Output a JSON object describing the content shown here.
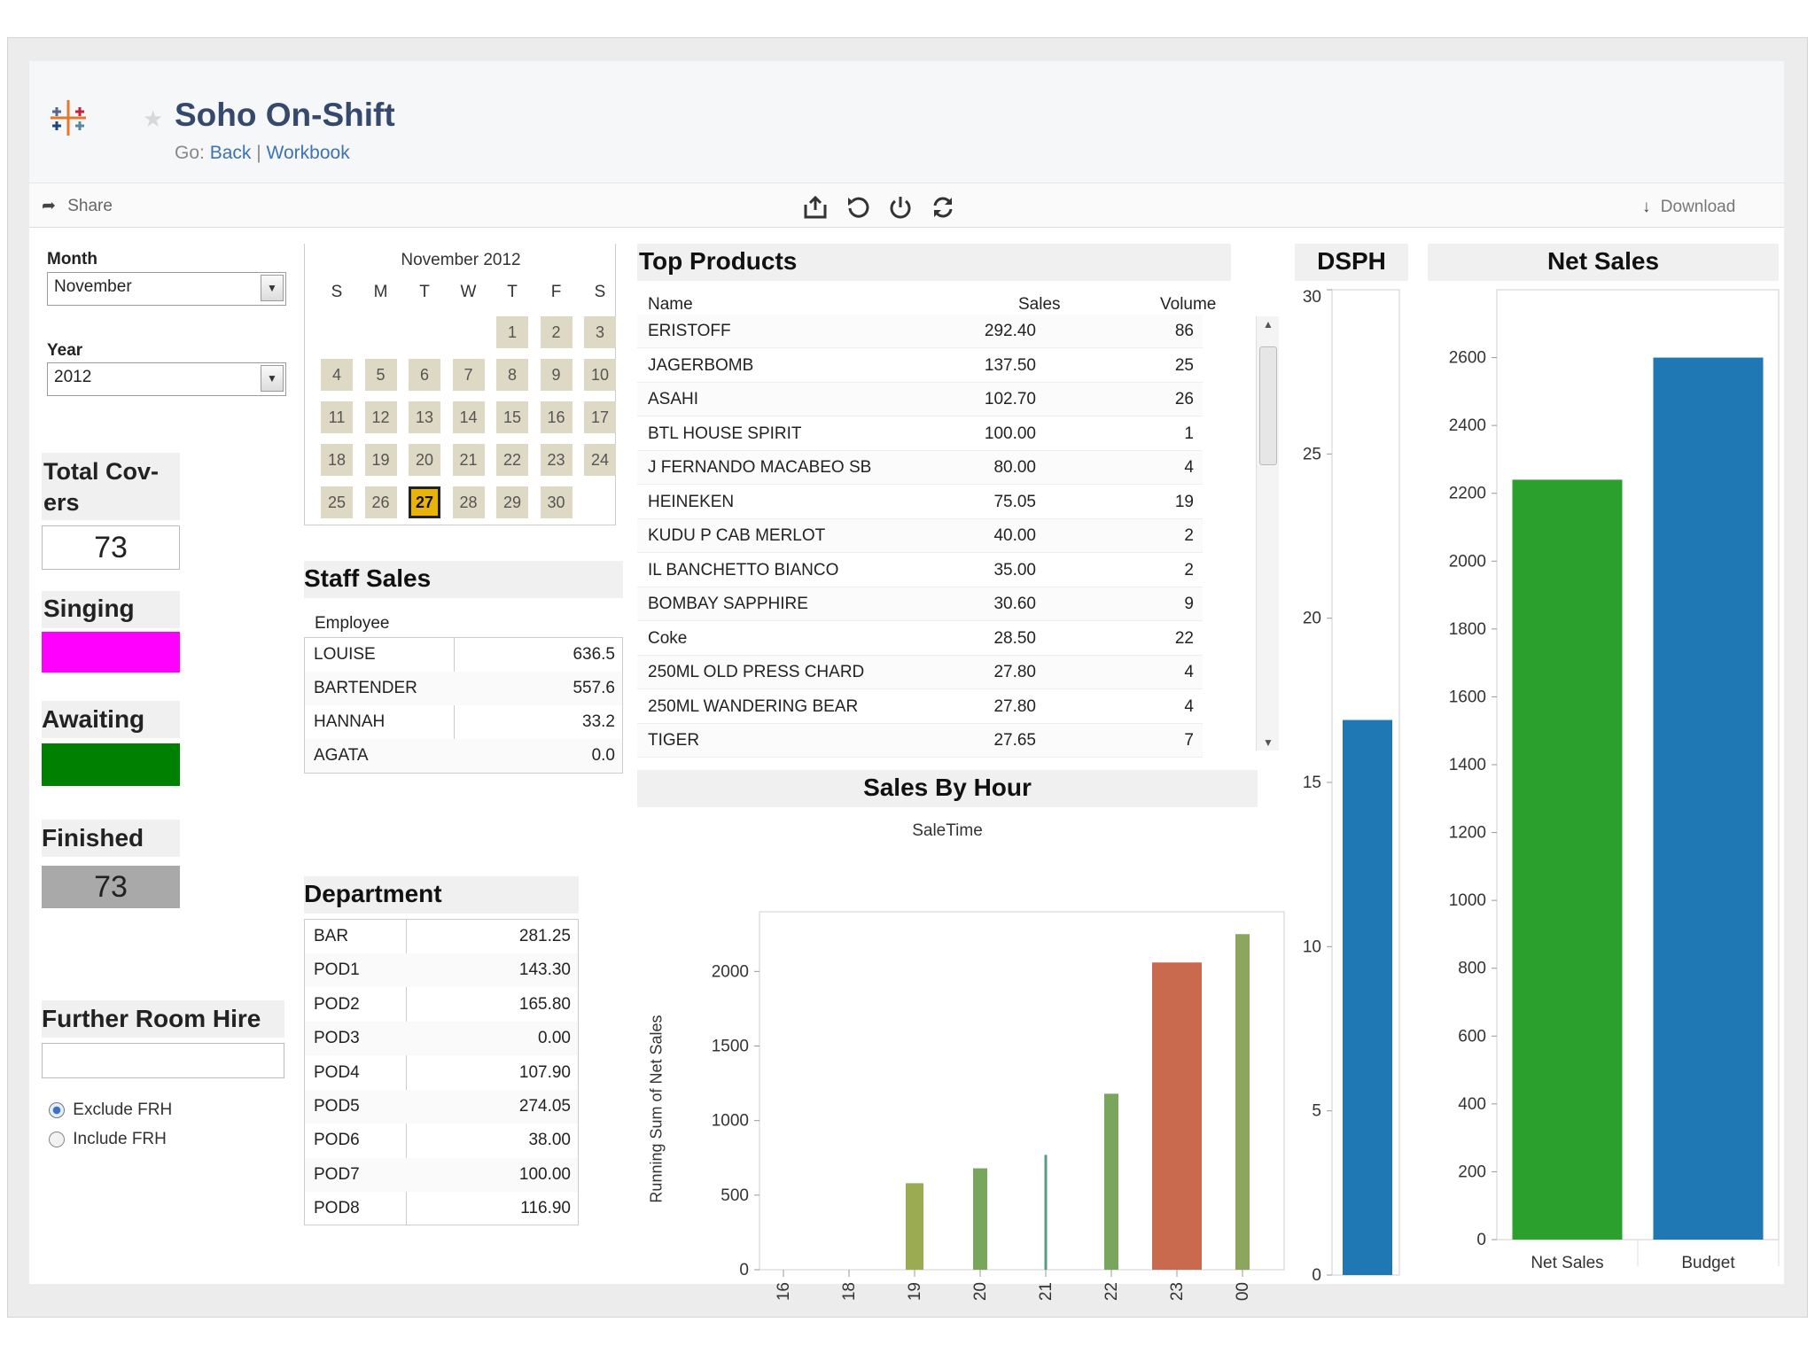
{
  "app": {
    "title": "Soho On-Shift",
    "go_label": "Go:",
    "back": "Back",
    "sep": "|",
    "workbook": "Workbook"
  },
  "toolbar": {
    "share": "Share",
    "download": "Download"
  },
  "filters": {
    "month_label": "Month",
    "month_value": "November",
    "year_label": "Year",
    "year_value": "2012"
  },
  "status": {
    "total_covers_label": "Total Cov-\ners",
    "total_covers_value": "73",
    "singing_label": "Singing",
    "singing_color": "#ff00ff",
    "awaiting_label": "Awaiting",
    "awaiting_color": "#008000",
    "finished_label": "Finished",
    "finished_value": "73"
  },
  "room_hire": {
    "label": "Further Room Hire",
    "input_value": "",
    "options": [
      "Exclude FRH",
      "Include FRH"
    ],
    "selected": "Exclude FRH"
  },
  "calendar": {
    "title": "November 2012",
    "weekdays": [
      "S",
      "M",
      "T",
      "W",
      "T",
      "F",
      "S"
    ],
    "start_weekday": 4,
    "days": 30,
    "selected_day": 27
  },
  "staff_sales": {
    "title": "Staff Sales",
    "column": "Employee",
    "rows": [
      {
        "name": "LOUISE",
        "value": "636.5"
      },
      {
        "name": "BARTENDER",
        "value": "557.6"
      },
      {
        "name": "HANNAH",
        "value": "33.2"
      },
      {
        "name": "AGATA",
        "value": "0.0"
      }
    ]
  },
  "department": {
    "title": "Department",
    "rows": [
      {
        "name": "BAR",
        "value": "281.25"
      },
      {
        "name": "POD1",
        "value": "143.30"
      },
      {
        "name": "POD2",
        "value": "165.80"
      },
      {
        "name": "POD3",
        "value": "0.00"
      },
      {
        "name": "POD4",
        "value": "107.90"
      },
      {
        "name": "POD5",
        "value": "274.05"
      },
      {
        "name": "POD6",
        "value": "38.00"
      },
      {
        "name": "POD7",
        "value": "100.00"
      },
      {
        "name": "POD8",
        "value": "116.90"
      }
    ]
  },
  "top_products": {
    "title": "Top Products",
    "columns": [
      "Name",
      "Sales",
      "Volume"
    ],
    "rows": [
      {
        "name": "ERISTOFF",
        "sales": "292.40",
        "volume": "86"
      },
      {
        "name": "JAGERBOMB",
        "sales": "137.50",
        "volume": "25"
      },
      {
        "name": "ASAHI",
        "sales": "102.70",
        "volume": "26"
      },
      {
        "name": "BTL HOUSE SPIRIT",
        "sales": "100.00",
        "volume": "1"
      },
      {
        "name": "J FERNANDO MACABEO SB",
        "sales": "80.00",
        "volume": "4"
      },
      {
        "name": "HEINEKEN",
        "sales": "75.05",
        "volume": "19"
      },
      {
        "name": "KUDU P CAB MERLOT",
        "sales": "40.00",
        "volume": "2"
      },
      {
        "name": "IL BANCHETTO BIANCO",
        "sales": "35.00",
        "volume": "2"
      },
      {
        "name": "BOMBAY SAPPHIRE",
        "sales": "30.60",
        "volume": "9"
      },
      {
        "name": "Coke",
        "sales": "28.50",
        "volume": "22"
      },
      {
        "name": "250ML OLD PRESS CHARD",
        "sales": "27.80",
        "volume": "4"
      },
      {
        "name": "250ML WANDERING BEAR",
        "sales": "27.80",
        "volume": "4"
      },
      {
        "name": "TIGER",
        "sales": "27.65",
        "volume": "7"
      }
    ]
  },
  "chart_data": [
    {
      "type": "bar",
      "title": "Sales By Hour",
      "subtitle": "SaleTime",
      "ylabel": "Running Sum of Net Sales",
      "ylim": [
        0,
        2400
      ],
      "yticks": [
        0,
        500,
        1000,
        1500,
        2000
      ],
      "categories": [
        "16",
        "18",
        "19",
        "20",
        "21",
        "22",
        "23",
        "00"
      ],
      "values": [
        0,
        0,
        580,
        680,
        770,
        1180,
        2060,
        2250
      ],
      "colors": [
        "#9aab52",
        "#9aab52",
        "#9aab52",
        "#79a65d",
        "#5a9a80",
        "#79a65d",
        "#c96a4f",
        "#8ca65e"
      ],
      "widths": [
        "thin",
        "thin",
        "wide",
        "medium",
        "thin",
        "medium",
        "widest",
        "medium"
      ],
      "grid": false
    },
    {
      "type": "bar",
      "title": "DSPH",
      "ylim": [
        0,
        30
      ],
      "yticks": [
        0,
        5,
        10,
        15,
        20,
        25,
        30
      ],
      "values": [
        16.9
      ],
      "color": "#1f77b4"
    },
    {
      "type": "bar",
      "title": "Net Sales",
      "categories": [
        "Net Sales",
        "Budget"
      ],
      "values": [
        2240,
        2600
      ],
      "colors": [
        "#2ca02c",
        "#1f77b4"
      ],
      "ylim": [
        0,
        2800
      ],
      "yticks": [
        0,
        200,
        400,
        600,
        800,
        1000,
        1200,
        1400,
        1600,
        1800,
        2000,
        2200,
        2400,
        2600
      ]
    }
  ]
}
